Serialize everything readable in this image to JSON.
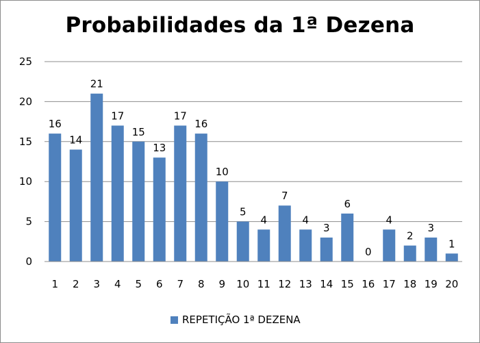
{
  "chart_data": {
    "type": "bar",
    "title": "Probabilidades da 1ª Dezena",
    "xlabel": "",
    "ylabel": "",
    "ylim": [
      0,
      25
    ],
    "yticks": [
      0,
      5,
      10,
      15,
      20,
      25
    ],
    "grid": true,
    "legend_position": "bottom",
    "categories": [
      "1",
      "2",
      "3",
      "4",
      "5",
      "6",
      "7",
      "8",
      "9",
      "10",
      "11",
      "12",
      "13",
      "14",
      "15",
      "16",
      "17",
      "18",
      "19",
      "20"
    ],
    "series": [
      {
        "name": "REPETIÇÃO 1ª DEZENA",
        "color": "#4f81bd",
        "values": [
          16,
          14,
          21,
          17,
          15,
          13,
          17,
          16,
          10,
          5,
          4,
          7,
          4,
          3,
          6,
          0,
          4,
          2,
          3,
          1
        ]
      }
    ]
  }
}
